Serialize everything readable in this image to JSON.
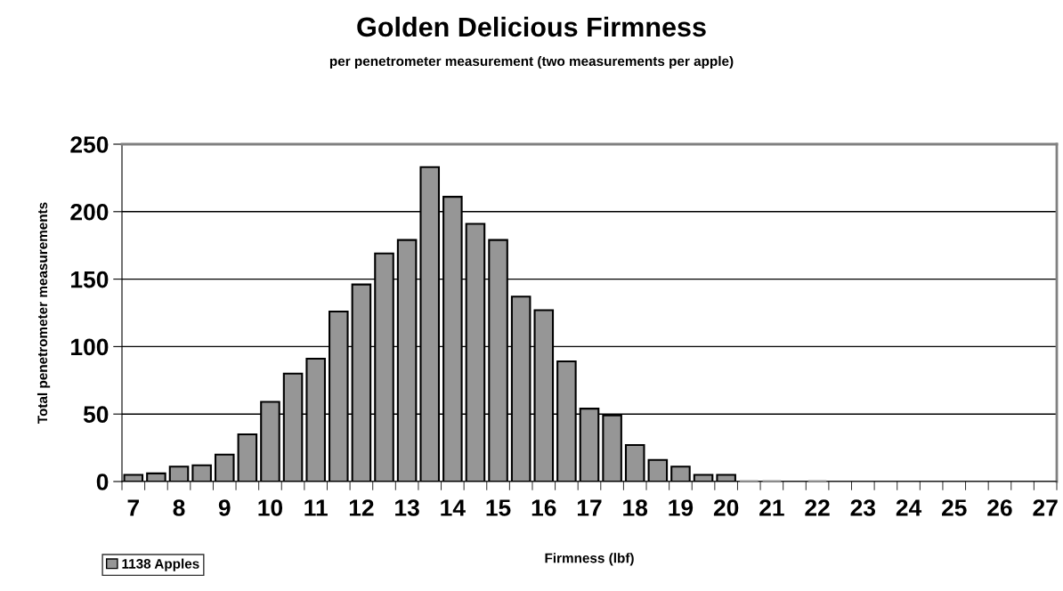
{
  "chart_data": {
    "type": "bar",
    "title": "Golden Delicious Firmness",
    "subtitle": "per penetrometer measurement (two measurements per apple)",
    "xlabel": "Firmness (lbf)",
    "ylabel": "Total penetrometer measurements",
    "categories": [
      "7",
      null,
      "8",
      null,
      "9",
      null,
      "10",
      null,
      "11",
      null,
      "12",
      null,
      "13",
      null,
      "14",
      null,
      "15",
      null,
      "16",
      null,
      "17",
      null,
      "18",
      null,
      "19",
      null,
      "20",
      null,
      "21",
      null,
      "22",
      null,
      "23",
      null,
      "24",
      null,
      "25",
      null,
      "26",
      null,
      "27"
    ],
    "series": [
      {
        "name": "1138 Apples",
        "color": "#969696",
        "values": [
          5,
          6,
          11,
          12,
          20,
          35,
          59,
          80,
          91,
          126,
          146,
          169,
          179,
          233,
          211,
          191,
          179,
          137,
          127,
          89,
          54,
          49,
          27,
          16,
          11,
          5,
          5,
          1,
          1,
          0,
          1,
          0,
          0,
          0,
          0,
          0,
          0,
          0,
          0,
          0,
          0
        ]
      }
    ],
    "ylim": [
      0,
      250
    ],
    "yticks": [
      0,
      50,
      100,
      150,
      200,
      250
    ],
    "grid": "y",
    "legend": "bottom left"
  }
}
